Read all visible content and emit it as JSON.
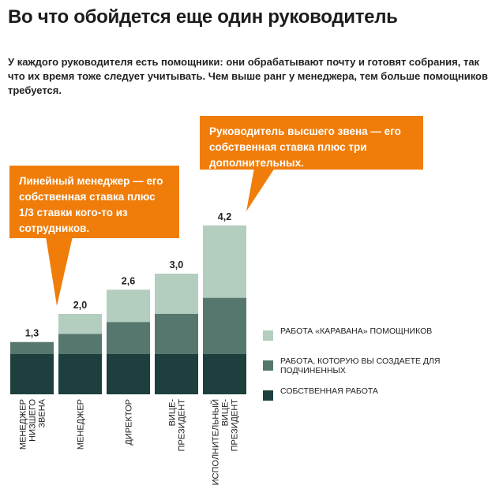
{
  "header": {
    "title": "Во что обойдется еще один руководитель",
    "subtitle": "У каждого руководителя есть помощники: они обрабатывают почту и готовят собрания, так что их время тоже следует учитывать. Чем выше ранг у менеджера, тем больше помощников требуется."
  },
  "callouts": {
    "left": "Линейный менеджер — его собственная ставка плюс 1/3 ставки кого-то из сотрудников.",
    "right": "Руководитель высшего звена — его собственная ставка плюс три дополнительных."
  },
  "colors": {
    "own_work": "#1d3f3e",
    "subordinates": "#56776e",
    "caravan": "#b3cdbf",
    "callout": "#f07d0a"
  },
  "chart_data": {
    "type": "bar",
    "stacked": true,
    "categories": [
      [
        "МЕНЕДЖЕР",
        "НИЗШЕГО",
        "ЗВЕНА"
      ],
      [
        "МЕНЕДЖЕР"
      ],
      [
        "ДИРЕКТОР"
      ],
      [
        "ВИЦЕ-",
        "ПРЕЗИДЕНТ"
      ],
      [
        "ИСПОЛНИТЕЛЬНЫЙ",
        "ВИЦЕ-",
        "ПРЕЗИДЕНТ"
      ]
    ],
    "totals": [
      "1,3",
      "2,0",
      "2,6",
      "3,0",
      "4,2"
    ],
    "series": [
      {
        "key": "own_work",
        "name": "СОБСТВЕННАЯ РАБОТА",
        "values": [
          1.0,
          1.0,
          1.0,
          1.0,
          1.0
        ]
      },
      {
        "key": "subordinates",
        "name": "РАБОТА, КОТОРУЮ ВЫ СОЗДАЕТЕ ДЛЯ ПОДЧИНЕННЫХ",
        "values": [
          0.3,
          0.5,
          0.8,
          1.0,
          1.4
        ]
      },
      {
        "key": "caravan",
        "name": "РАБОТА «КАРАВАНА» ПОМОЩНИКОВ",
        "values": [
          0.0,
          0.5,
          0.8,
          1.0,
          1.8
        ]
      }
    ],
    "ylim": [
      0,
      4.2
    ]
  }
}
